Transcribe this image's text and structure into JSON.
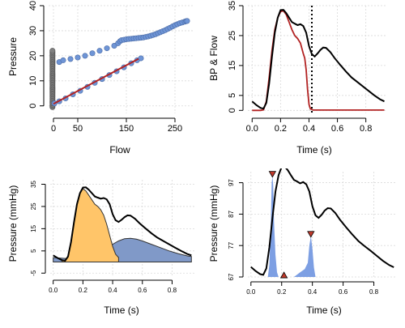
{
  "chart_data": [
    {
      "type": "scatter",
      "xlabel": "Flow",
      "ylabel": "Pressure",
      "xlim": [
        -10,
        290
      ],
      "ylim": [
        -3,
        40
      ],
      "xticks": [
        0,
        50,
        150,
        250
      ],
      "yticks": [
        0,
        10,
        20,
        30,
        40
      ],
      "grid": true,
      "colors": {
        "upper": "#6f95d6",
        "lower": "#6f95d6",
        "vertical": "#808080",
        "fit": "#b22222"
      },
      "series": [
        {
          "x": [
            12,
            20,
            35,
            50,
            65,
            80,
            95,
            110,
            125,
            133,
            137,
            140,
            145,
            150,
            155,
            160,
            165,
            170,
            175,
            180,
            185,
            190,
            195,
            200,
            205,
            210,
            215,
            220,
            225,
            230,
            235,
            240,
            245,
            250,
            255,
            260,
            265,
            270,
            273,
            275
          ],
          "y": [
            17.5,
            18.2,
            18.7,
            19.3,
            20.0,
            21.0,
            22.0,
            23.0,
            24.0,
            25.0,
            25.8,
            26.2,
            26.4,
            26.6,
            26.7,
            26.8,
            26.9,
            27.0,
            27.1,
            27.2,
            27.3,
            27.5,
            27.7,
            28.0,
            28.3,
            28.6,
            29.0,
            29.4,
            29.8,
            30.2,
            30.7,
            31.2,
            31.7,
            32.2,
            32.6,
            33.0,
            33.3,
            33.6,
            33.8,
            33.9
          ]
        },
        {
          "x": [
            2,
            12,
            25,
            40,
            55,
            70,
            85,
            100,
            115,
            130,
            145,
            160,
            172,
            180
          ],
          "y": [
            1.0,
            1.8,
            3.0,
            4.6,
            6.0,
            7.6,
            9.2,
            10.7,
            12.3,
            13.8,
            15.4,
            17.0,
            18.2,
            19.0
          ]
        },
        {
          "x": [
            -2,
            -2,
            -2,
            -2,
            -2,
            -2,
            -2,
            -2,
            -2,
            -2,
            -2,
            -2,
            -2,
            -2,
            -2,
            -2,
            -2,
            -2,
            -2,
            -2,
            -2,
            -2,
            -2,
            -2,
            -2,
            -2,
            -2,
            -2,
            -2,
            -2,
            -2,
            -2,
            -2,
            -2,
            -2,
            -2,
            -2,
            -2,
            -2,
            -2,
            -2,
            -2,
            -2,
            -2,
            -2,
            -2
          ],
          "y": [
            -0.5,
            0,
            0.5,
            1,
            1.5,
            2,
            2.5,
            3,
            3.5,
            4,
            4.5,
            5,
            5.5,
            6,
            6.5,
            7,
            7.5,
            8,
            8.5,
            9,
            9.5,
            10,
            10.5,
            11,
            11.5,
            12,
            12.5,
            13,
            13.5,
            14,
            14.5,
            15,
            15.5,
            16,
            16.5,
            17,
            17.5,
            18,
            18.5,
            19,
            19.5,
            20,
            20.5,
            21,
            21.5,
            22
          ]
        },
        {
          "type": "line",
          "x": [
            0,
            175
          ],
          "y": [
            0.8,
            18.8
          ]
        }
      ]
    },
    {
      "type": "line",
      "xlabel": "Time (s)",
      "ylabel": "BP & Flow",
      "xlim": [
        -0.03,
        0.95
      ],
      "ylim": [
        -1,
        35
      ],
      "xticks": [
        0.0,
        0.2,
        0.4,
        0.6,
        0.8
      ],
      "yticks": [
        0,
        5,
        15,
        25,
        35
      ],
      "grid": true,
      "vline": 0.42,
      "colors": {
        "pressure": "#000000",
        "flow": "#b22222"
      },
      "series": [
        {
          "x": [
            0.0,
            0.03,
            0.06,
            0.08,
            0.1,
            0.12,
            0.14,
            0.16,
            0.18,
            0.2,
            0.22,
            0.24,
            0.26,
            0.28,
            0.3,
            0.32,
            0.34,
            0.36,
            0.38,
            0.4,
            0.42,
            0.44,
            0.46,
            0.48,
            0.5,
            0.52,
            0.55,
            0.58,
            0.62,
            0.66,
            0.7,
            0.74,
            0.78,
            0.82,
            0.86,
            0.9,
            0.93
          ],
          "y": [
            3.0,
            1.8,
            0.8,
            0.6,
            2.5,
            9.0,
            18.0,
            26.0,
            31.0,
            33.5,
            33.6,
            32.5,
            31.0,
            29.5,
            29.0,
            28.5,
            28.8,
            28.2,
            26.0,
            21.5,
            18.8,
            18.0,
            19.0,
            20.2,
            21.0,
            20.9,
            19.5,
            17.5,
            15.2,
            13.0,
            11.0,
            9.5,
            8.0,
            6.5,
            5.0,
            3.7,
            3.0
          ]
        },
        {
          "x": [
            0.0,
            0.06,
            0.08,
            0.1,
            0.12,
            0.14,
            0.16,
            0.18,
            0.2,
            0.22,
            0.24,
            0.26,
            0.28,
            0.3,
            0.32,
            0.34,
            0.36,
            0.37,
            0.38,
            0.39,
            0.4,
            0.41,
            0.43,
            0.5,
            0.6,
            0.7,
            0.8,
            0.93
          ],
          "y": [
            0,
            0,
            0.2,
            3.0,
            11.0,
            20.0,
            27.0,
            31.0,
            33.0,
            33.3,
            32.0,
            29.5,
            27.0,
            25.0,
            24.0,
            22.5,
            19.0,
            17.5,
            13.5,
            7.0,
            2.0,
            0.5,
            0.1,
            0.1,
            0.1,
            0.1,
            0.1,
            0.1
          ]
        }
      ]
    },
    {
      "type": "area",
      "xlabel": "Time (s)",
      "ylabel": "Pressure (mmHg)",
      "xlim": [
        -0.02,
        0.95
      ],
      "ylim": [
        -6,
        37
      ],
      "xticks": [
        0.0,
        0.2,
        0.4,
        0.6,
        0.8
      ],
      "yticks": [
        -5,
        5,
        15,
        25,
        35
      ],
      "grid": true,
      "colors": {
        "forward": "#ffc569",
        "backward": "#8099c8",
        "total": "#000000"
      },
      "series": [
        {
          "x": [
            0.0,
            0.03,
            0.06,
            0.08,
            0.1,
            0.12,
            0.14,
            0.16,
            0.18,
            0.2,
            0.22,
            0.24,
            0.26,
            0.28,
            0.3,
            0.32,
            0.34,
            0.36,
            0.38,
            0.4,
            0.42,
            0.44,
            0.46,
            0.48,
            0.5,
            0.52,
            0.55,
            0.58,
            0.62,
            0.66,
            0.7,
            0.74,
            0.78,
            0.82,
            0.86,
            0.9,
            0.93
          ],
          "y": [
            3.0,
            1.8,
            0.8,
            0.6,
            2.5,
            9.0,
            18.0,
            26.0,
            31.0,
            33.5,
            33.6,
            32.5,
            31.0,
            29.5,
            29.0,
            28.5,
            28.8,
            28.2,
            26.0,
            21.5,
            18.8,
            18.0,
            19.0,
            20.2,
            21.0,
            20.9,
            19.5,
            17.5,
            15.2,
            13.0,
            11.0,
            9.5,
            8.0,
            6.5,
            5.0,
            3.7,
            3.0
          ]
        },
        {
          "x": [
            0.06,
            0.08,
            0.1,
            0.12,
            0.14,
            0.16,
            0.18,
            0.2,
            0.22,
            0.24,
            0.26,
            0.28,
            0.3,
            0.32,
            0.34,
            0.36,
            0.38,
            0.4,
            0.42,
            0.44
          ],
          "y": [
            0.8,
            0.6,
            2.5,
            9.0,
            18.0,
            26.0,
            31.0,
            33.0,
            32.0,
            30.0,
            28.0,
            26.0,
            25.0,
            23.5,
            21.0,
            17.0,
            12.0,
            7.0,
            3.5,
            2.0
          ]
        },
        {
          "x": [
            0.0,
            0.1,
            0.2,
            0.26,
            0.3,
            0.33,
            0.36,
            0.4,
            0.44,
            0.48,
            0.52,
            0.56,
            0.6,
            0.66,
            0.72,
            0.78,
            0.84,
            0.9,
            0.93
          ],
          "y": [
            2.0,
            1.5,
            1.0,
            1.0,
            1.5,
            3.0,
            5.5,
            8.0,
            9.5,
            10.5,
            10.7,
            10.3,
            9.5,
            8.0,
            6.5,
            5.0,
            3.8,
            2.8,
            2.5
          ]
        }
      ]
    },
    {
      "type": "line",
      "xlabel": "Time (s)",
      "ylabel": "Pressure (mmHg)",
      "xlim": [
        -0.02,
        0.95
      ],
      "ylim": [
        67,
        100.5
      ],
      "xticks": [
        0.0,
        0.2,
        0.4,
        0.6,
        0.8
      ],
      "yticks": [
        67,
        77,
        87,
        97
      ],
      "grid": true,
      "colors": {
        "pressure": "#000000",
        "peaks": "#6f95e0",
        "marker": "#c0392b"
      },
      "series": [
        {
          "x": [
            0.0,
            0.03,
            0.06,
            0.08,
            0.1,
            0.12,
            0.14,
            0.16,
            0.18,
            0.2,
            0.22,
            0.24,
            0.26,
            0.28,
            0.3,
            0.32,
            0.34,
            0.36,
            0.38,
            0.4,
            0.42,
            0.44,
            0.46,
            0.48,
            0.5,
            0.52,
            0.55,
            0.58,
            0.62,
            0.66,
            0.7,
            0.74,
            0.78,
            0.82,
            0.86,
            0.9,
            0.93
          ],
          "y": [
            70.2,
            68.9,
            67.9,
            67.7,
            69.7,
            76.5,
            85.9,
            94.2,
            99.4,
            102.0,
            102.1,
            101.0,
            99.4,
            97.9,
            97.4,
            96.8,
            97.2,
            96.5,
            94.2,
            89.5,
            86.6,
            85.8,
            86.8,
            88.1,
            88.9,
            88.8,
            87.3,
            85.2,
            82.8,
            80.5,
            78.4,
            76.8,
            75.3,
            73.7,
            72.1,
            70.8,
            70.1
          ]
        },
        {
          "x": [
            0.11,
            0.12,
            0.13,
            0.135,
            0.14,
            0.145,
            0.15,
            0.16,
            0.17,
            0.18
          ],
          "y": [
            67,
            71,
            86,
            97,
            99,
            96,
            85,
            74,
            68.5,
            67
          ]
        },
        {
          "x": [
            0.28,
            0.32,
            0.35,
            0.37,
            0.38,
            0.39,
            0.4,
            0.41,
            0.42
          ],
          "y": [
            67,
            68.5,
            69.5,
            71.5,
            77,
            80,
            76,
            70,
            67
          ]
        },
        {
          "x": [
            0.14,
            0.39
          ],
          "y": [
            99.3,
            80.2
          ]
        },
        {
          "x": [
            0.215
          ],
          "y": [
            67.5
          ]
        }
      ]
    }
  ]
}
